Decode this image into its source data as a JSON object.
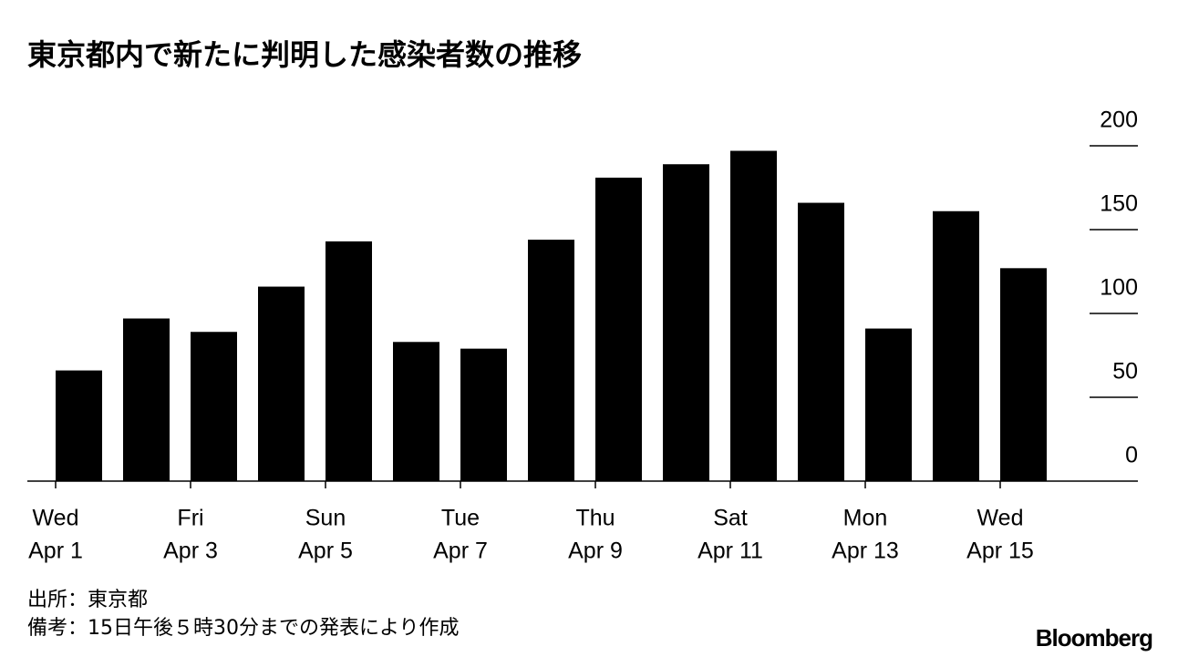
{
  "chart_data": {
    "type": "bar",
    "title": "東京都内で新たに判明した感染者数の推移",
    "categories": [
      [
        "Wed",
        "Apr 1"
      ],
      null,
      [
        "Fri",
        "Apr 3"
      ],
      null,
      [
        "Sun",
        "Apr 5"
      ],
      null,
      [
        "Tue",
        "Apr 7"
      ],
      null,
      [
        "Thu",
        "Apr 9"
      ],
      null,
      [
        "Sat",
        "Apr 11"
      ],
      null,
      [
        "Mon",
        "Apr 13"
      ],
      null,
      [
        "Wed",
        "Apr 15"
      ]
    ],
    "values": [
      66,
      97,
      89,
      116,
      143,
      83,
      79,
      144,
      181,
      189,
      197,
      166,
      91,
      161,
      127
    ],
    "color": "#000000",
    "ylim": [
      0,
      200
    ],
    "yticks": [
      0,
      50,
      100,
      150,
      200
    ],
    "source": "出所：東京都",
    "note": "備考：15日午後５時30分までの発表により作成",
    "brand": "Bloomberg"
  }
}
